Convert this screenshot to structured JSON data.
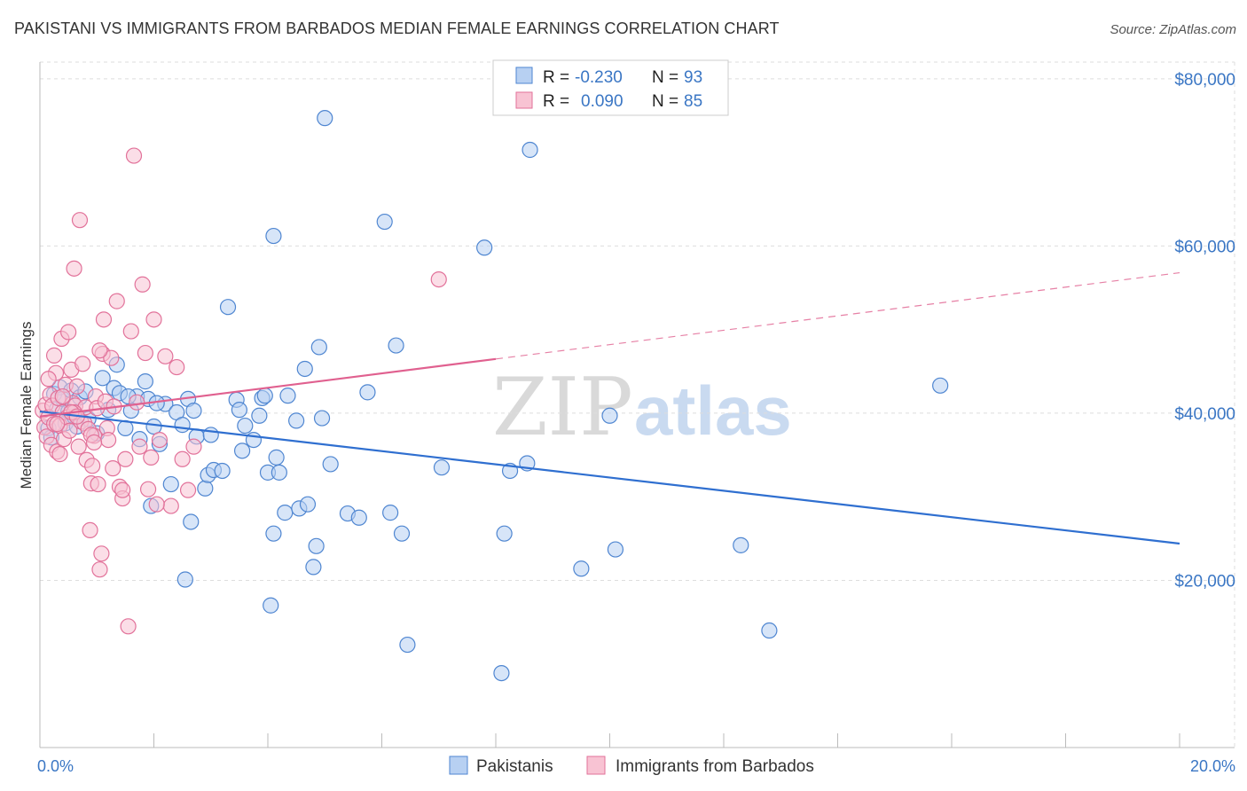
{
  "title": "PAKISTANI VS IMMIGRANTS FROM BARBADOS MEDIAN FEMALE EARNINGS CORRELATION CHART",
  "source": "Source: ZipAtlas.com",
  "watermark": {
    "zip": "ZIP",
    "atlas": "atlas"
  },
  "legend": {
    "rows": [
      {
        "r_label": "R =",
        "r_value": "-0.230",
        "n_label": "N =",
        "n_value": "93"
      },
      {
        "r_label": "R =",
        "r_value": "0.090",
        "n_label": "N =",
        "n_value": "85"
      }
    ]
  },
  "colors": {
    "blue_fill": "#b7d0f2",
    "blue_stroke": "#4f86d1",
    "blue_line": "#2f6fd0",
    "pink_fill": "#f8c3d3",
    "pink_stroke": "#e2729a",
    "pink_line": "#e0608f",
    "tick_text": "#3a76c4",
    "grid": "#dddddd"
  },
  "chart_data": {
    "type": "scatter",
    "title": "PAKISTANI VS IMMIGRANTS FROM BARBADOS MEDIAN FEMALE EARNINGS CORRELATION CHART",
    "xlabel": "",
    "ylabel": "Median Female Earnings",
    "xlim": [
      0,
      20
    ],
    "ylim": [
      0,
      82000
    ],
    "x_ticks": [
      0,
      20
    ],
    "x_tick_labels": [
      "0.0%",
      "20.0%"
    ],
    "y_ticks": [
      20000,
      40000,
      60000,
      80000
    ],
    "y_tick_labels": [
      "$20,000",
      "$40,000",
      "$60,000",
      "$80,000"
    ],
    "grid": true,
    "legend_position": "top-center",
    "series": [
      {
        "name": "Pakistanis",
        "color": "#4f86d1",
        "r": -0.23,
        "n": 93,
        "trend": {
          "x": [
            0,
            20
          ],
          "y": [
            40200,
            24400
          ],
          "dashed_from": null
        },
        "points": [
          [
            0.15,
            38200
          ],
          [
            0.25,
            42300
          ],
          [
            0.3,
            40500
          ],
          [
            0.35,
            43100
          ],
          [
            0.4,
            41700
          ],
          [
            0.45,
            38800
          ],
          [
            0.5,
            40200
          ],
          [
            0.55,
            42700
          ],
          [
            0.6,
            39600
          ],
          [
            0.7,
            41900
          ],
          [
            0.8,
            42600
          ],
          [
            0.85,
            39300
          ],
          [
            1.0,
            37600
          ],
          [
            1.1,
            44200
          ],
          [
            1.2,
            40400
          ],
          [
            1.3,
            43000
          ],
          [
            1.35,
            45800
          ],
          [
            1.4,
            42400
          ],
          [
            1.5,
            38200
          ],
          [
            1.6,
            40300
          ],
          [
            1.7,
            42000
          ],
          [
            1.75,
            36900
          ],
          [
            1.85,
            43800
          ],
          [
            1.9,
            41700
          ],
          [
            1.95,
            28900
          ],
          [
            2.0,
            38400
          ],
          [
            2.1,
            36300
          ],
          [
            2.2,
            41100
          ],
          [
            2.3,
            31500
          ],
          [
            2.4,
            40100
          ],
          [
            2.5,
            38600
          ],
          [
            2.55,
            20100
          ],
          [
            2.6,
            41700
          ],
          [
            2.65,
            27000
          ],
          [
            2.7,
            40300
          ],
          [
            2.75,
            37200
          ],
          [
            2.9,
            31000
          ],
          [
            2.95,
            32600
          ],
          [
            3.0,
            37400
          ],
          [
            3.05,
            33200
          ],
          [
            3.3,
            52700
          ],
          [
            3.45,
            41600
          ],
          [
            3.5,
            40400
          ],
          [
            3.6,
            38500
          ],
          [
            3.55,
            35500
          ],
          [
            3.75,
            36800
          ],
          [
            3.85,
            39700
          ],
          [
            3.9,
            41800
          ],
          [
            4.0,
            32900
          ],
          [
            4.05,
            17000
          ],
          [
            4.1,
            25600
          ],
          [
            4.15,
            34700
          ],
          [
            4.2,
            32900
          ],
          [
            4.3,
            28100
          ],
          [
            4.35,
            42100
          ],
          [
            4.1,
            61200
          ],
          [
            4.5,
            39100
          ],
          [
            4.55,
            28600
          ],
          [
            4.65,
            45300
          ],
          [
            4.7,
            29100
          ],
          [
            4.8,
            21600
          ],
          [
            4.85,
            24100
          ],
          [
            4.9,
            47900
          ],
          [
            4.95,
            39400
          ],
          [
            5.0,
            75300
          ],
          [
            5.1,
            33900
          ],
          [
            5.4,
            28000
          ],
          [
            5.6,
            27500
          ],
          [
            5.75,
            42500
          ],
          [
            6.05,
            62900
          ],
          [
            6.15,
            28100
          ],
          [
            6.25,
            48100
          ],
          [
            6.35,
            25600
          ],
          [
            6.45,
            12300
          ],
          [
            7.05,
            33500
          ],
          [
            7.8,
            59800
          ],
          [
            8.1,
            8900
          ],
          [
            8.15,
            25600
          ],
          [
            8.25,
            33100
          ],
          [
            8.55,
            34000
          ],
          [
            8.6,
            71500
          ],
          [
            9.5,
            21400
          ],
          [
            10.0,
            39700
          ],
          [
            10.1,
            23700
          ],
          [
            12.3,
            24200
          ],
          [
            12.8,
            14000
          ],
          [
            15.8,
            43300
          ],
          [
            0.2,
            37100
          ],
          [
            0.65,
            38400
          ],
          [
            1.55,
            42000
          ],
          [
            2.05,
            41200
          ],
          [
            3.2,
            33100
          ],
          [
            3.95,
            42100
          ]
        ]
      },
      {
        "name": "Immigrants from Barbados",
        "color": "#e2729a",
        "r": 0.09,
        "n": 85,
        "trend": {
          "x": [
            0,
            20
          ],
          "y": [
            39600,
            56800
          ],
          "dashed_from": 8.0
        },
        "points": [
          [
            0.05,
            40300
          ],
          [
            0.08,
            38300
          ],
          [
            0.1,
            41000
          ],
          [
            0.12,
            37200
          ],
          [
            0.15,
            39500
          ],
          [
            0.18,
            42200
          ],
          [
            0.2,
            36200
          ],
          [
            0.22,
            40900
          ],
          [
            0.25,
            38700
          ],
          [
            0.28,
            44800
          ],
          [
            0.3,
            35400
          ],
          [
            0.32,
            41800
          ],
          [
            0.35,
            38500
          ],
          [
            0.38,
            48900
          ],
          [
            0.4,
            40100
          ],
          [
            0.42,
            36900
          ],
          [
            0.45,
            43400
          ],
          [
            0.48,
            39500
          ],
          [
            0.5,
            49700
          ],
          [
            0.52,
            37900
          ],
          [
            0.55,
            45200
          ],
          [
            0.58,
            41200
          ],
          [
            0.6,
            57300
          ],
          [
            0.62,
            40900
          ],
          [
            0.65,
            43200
          ],
          [
            0.68,
            36000
          ],
          [
            0.7,
            63100
          ],
          [
            0.72,
            39000
          ],
          [
            0.75,
            45900
          ],
          [
            0.78,
            38800
          ],
          [
            0.8,
            40700
          ],
          [
            0.82,
            34400
          ],
          [
            0.85,
            38100
          ],
          [
            0.88,
            26000
          ],
          [
            0.9,
            31600
          ],
          [
            0.92,
            33700
          ],
          [
            0.95,
            37300
          ],
          [
            0.98,
            42000
          ],
          [
            1.0,
            40600
          ],
          [
            1.02,
            31500
          ],
          [
            1.05,
            21300
          ],
          [
            1.08,
            23200
          ],
          [
            1.1,
            47100
          ],
          [
            1.12,
            51200
          ],
          [
            1.15,
            41400
          ],
          [
            1.18,
            38200
          ],
          [
            1.2,
            36800
          ],
          [
            1.25,
            46600
          ],
          [
            1.28,
            33400
          ],
          [
            1.3,
            40800
          ],
          [
            1.35,
            53400
          ],
          [
            1.4,
            31200
          ],
          [
            1.45,
            29800
          ],
          [
            1.5,
            34500
          ],
          [
            1.55,
            14500
          ],
          [
            1.6,
            49800
          ],
          [
            1.65,
            70800
          ],
          [
            1.7,
            41300
          ],
          [
            1.75,
            36000
          ],
          [
            1.8,
            55400
          ],
          [
            1.85,
            47200
          ],
          [
            1.9,
            30900
          ],
          [
            1.95,
            34700
          ],
          [
            2.0,
            51200
          ],
          [
            2.1,
            36800
          ],
          [
            2.2,
            46800
          ],
          [
            2.3,
            28900
          ],
          [
            2.4,
            45500
          ],
          [
            2.5,
            34500
          ],
          [
            2.6,
            30800
          ],
          [
            2.7,
            36000
          ],
          [
            0.3,
            38700
          ],
          [
            0.4,
            42000
          ],
          [
            0.6,
            40100
          ],
          [
            0.9,
            37400
          ],
          [
            7.0,
            56000
          ],
          [
            0.15,
            44100
          ],
          [
            0.25,
            46900
          ],
          [
            0.55,
            40100
          ],
          [
            1.45,
            30800
          ],
          [
            0.65,
            39600
          ],
          [
            0.35,
            35100
          ],
          [
            1.05,
            47500
          ],
          [
            2.05,
            29100
          ],
          [
            0.95,
            36500
          ]
        ]
      }
    ]
  },
  "bottom_legend": {
    "items": [
      {
        "label": "Pakistanis"
      },
      {
        "label": "Immigrants from Barbados"
      }
    ]
  }
}
